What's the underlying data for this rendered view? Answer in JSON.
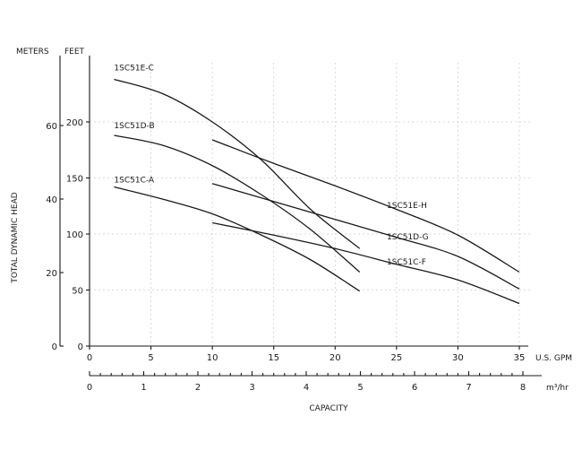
{
  "chart_data": {
    "type": "line",
    "title": "",
    "xlabel": "CAPACITY",
    "ylabel": "TOTAL DYNAMIC HEAD",
    "y_unit_left": "METERS",
    "y_unit_right": "FEET",
    "x_unit_gpm": "U.S. GPM",
    "x_unit_m3": "m³/hr",
    "xlim_gpm": [
      0,
      35
    ],
    "ylim_feet": [
      0,
      200
    ],
    "xticks_gpm": [
      "0",
      "5",
      "10",
      "15",
      "20",
      "25",
      "30",
      "35"
    ],
    "xticks_m3": [
      "0",
      "1",
      "2",
      "3",
      "4",
      "5",
      "6",
      "7",
      "8"
    ],
    "yticks_feet": [
      "0",
      "50",
      "100",
      "150",
      "200"
    ],
    "yticks_meters": [
      "0",
      "20",
      "40",
      "60"
    ],
    "grid": true,
    "series": [
      {
        "name": "1SC51E-C",
        "x": [
          2,
          6,
          10,
          14,
          18,
          22
        ],
        "y": [
          238,
          225,
          200,
          166,
          122,
          87
        ]
      },
      {
        "name": "1SC51D-B",
        "x": [
          2,
          6,
          10,
          14,
          18,
          22
        ],
        "y": [
          188,
          179,
          161,
          135,
          104,
          66
        ]
      },
      {
        "name": "1SC51C-A",
        "x": [
          2,
          6,
          10,
          14,
          18,
          22
        ],
        "y": [
          142,
          131,
          118,
          99,
          77,
          49
        ]
      },
      {
        "name": "1SC51E-H",
        "x": [
          10,
          15,
          20,
          25,
          30,
          35
        ],
        "y": [
          184,
          163,
          143,
          122,
          99,
          66
        ]
      },
      {
        "name": "1SC51D-G",
        "x": [
          10,
          15,
          20,
          25,
          30,
          35
        ],
        "y": [
          145,
          129,
          113,
          97,
          80,
          51
        ]
      },
      {
        "name": "1SC51C-F",
        "x": [
          10,
          15,
          20,
          25,
          30,
          35
        ],
        "y": [
          110,
          99,
          87,
          73,
          59,
          38
        ]
      }
    ]
  }
}
